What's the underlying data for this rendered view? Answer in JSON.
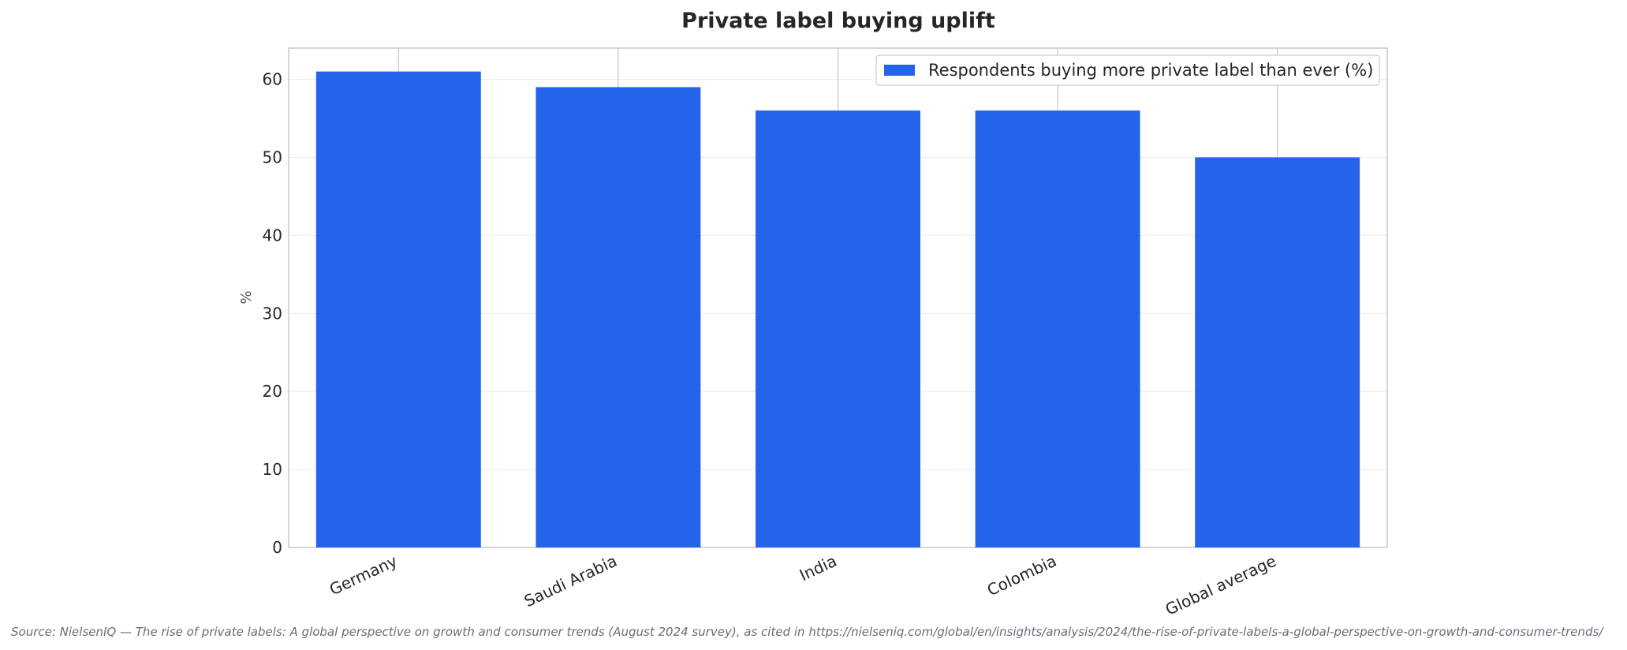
{
  "chart_data": {
    "type": "bar",
    "title": "Private label buying uplift",
    "ylabel": "%",
    "xlabel": "",
    "categories": [
      "Germany",
      "Saudi Arabia",
      "India",
      "Colombia",
      "Global average"
    ],
    "series": [
      {
        "name": "Respondents buying more private label than ever (%)",
        "values": [
          61,
          59,
          56,
          56,
          50
        ],
        "color": "#2563eb"
      }
    ],
    "ylim": [
      0,
      64
    ],
    "yticks": [
      0,
      10,
      20,
      30,
      40,
      50,
      60
    ],
    "grid": true,
    "legend_position": "top-right",
    "source": "Source: NielsenIQ — The rise of private labels: A global perspective on growth and consumer trends (August 2024 survey), as cited in https://nielseniq.com/global/en/insights/analysis/2024/the-rise-of-private-labels-a-global-perspective-on-growth-and-consumer-trends/"
  }
}
